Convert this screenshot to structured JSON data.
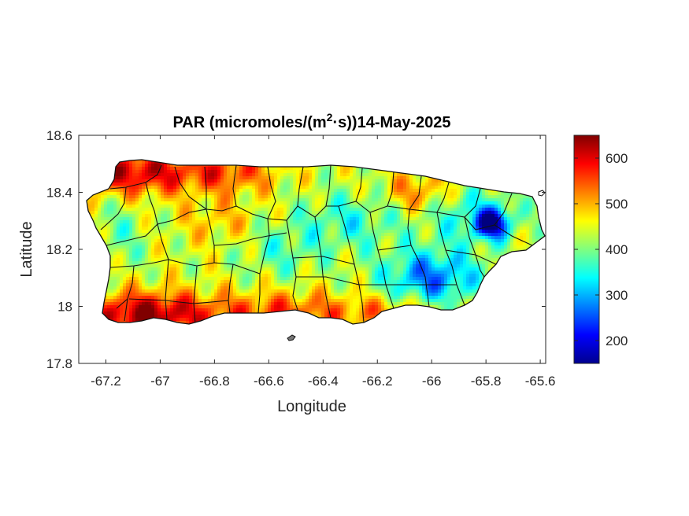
{
  "chart_data": {
    "type": "heatmap",
    "title": {
      "prefix": "PAR (micromoles/(m",
      "superscript": "2",
      "suffix": "·s))14-May-2025"
    },
    "xlabel": "Longitude",
    "ylabel": "Latitude",
    "xlim": [
      -67.3,
      -65.58
    ],
    "ylim": [
      17.8,
      18.6
    ],
    "xticks": [
      -67.2,
      -67,
      -66.8,
      -66.6,
      -66.4,
      -66.2,
      -66,
      -65.8,
      -65.6
    ],
    "xtick_labels": [
      "-67.2",
      "-67",
      "-66.8",
      "-66.6",
      "-66.4",
      "-66.2",
      "-66",
      "-65.8",
      "-65.6"
    ],
    "yticks": [
      17.8,
      18,
      18.2,
      18.4,
      18.6
    ],
    "ytick_labels": [
      "17.8",
      "18",
      "18.2",
      "18.4",
      "18.6"
    ],
    "colorbar": {
      "colormap": "jet",
      "range": [
        150,
        650
      ],
      "ticks": [
        200,
        300,
        400,
        500,
        600
      ],
      "tick_labels": [
        "200",
        "300",
        "400",
        "500",
        "600"
      ]
    },
    "region": "Puerto Rico municipalities",
    "pattern_notes": "Highest PAR (~600-650) along the southwest coast and northwest; lowest (~170-250) in the east-central interior and northeast near -65.78",
    "grid": false
  }
}
